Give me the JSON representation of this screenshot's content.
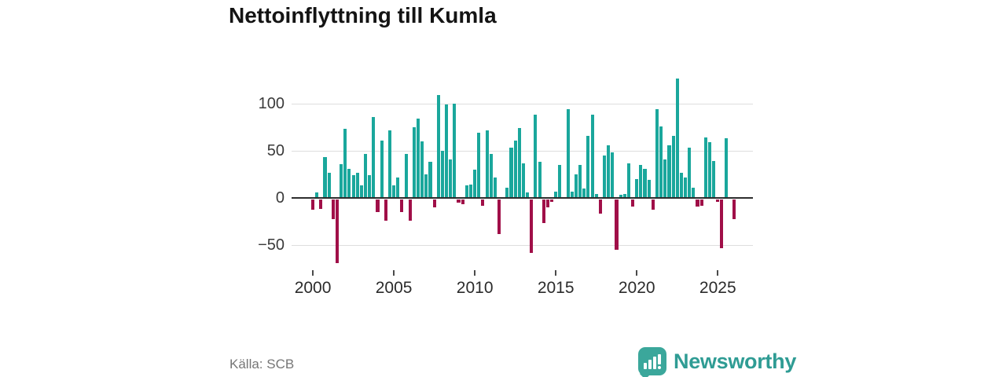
{
  "header": {
    "title": "Nettoinflyttning till Kumla"
  },
  "footer": {
    "source": "Källa: SCB",
    "brand": "Newsworthy"
  },
  "chart_data": {
    "type": "bar",
    "title": "Nettoinflyttning till Kumla",
    "frequency": "quarterly",
    "start": "2000-Q1",
    "end": "2026-Q1",
    "values": [
      -11,
      6,
      -10,
      43,
      27,
      -21,
      -68,
      36,
      73,
      31,
      24,
      27,
      13,
      47,
      24,
      86,
      -14,
      61,
      -23,
      72,
      13,
      22,
      -14,
      47,
      -23,
      75,
      84,
      60,
      25,
      38,
      -9,
      109,
      50,
      99,
      41,
      100,
      -4,
      -5,
      13,
      14,
      30,
      69,
      -7,
      72,
      47,
      22,
      -37,
      0,
      11,
      53,
      61,
      74,
      37,
      6,
      -57,
      88,
      38,
      -25,
      -9,
      -3,
      7,
      35,
      0,
      94,
      7,
      25,
      35,
      10,
      66,
      88,
      4,
      -15,
      45,
      56,
      48,
      -54,
      3,
      4,
      37,
      -8,
      20,
      35,
      31,
      19,
      -11,
      94,
      76,
      41,
      56,
      66,
      127,
      27,
      22,
      53,
      11,
      -8,
      -7,
      64,
      59,
      39,
      -3,
      -52,
      63,
      0,
      -21
    ],
    "y_ticks": [
      100,
      50,
      0,
      -50
    ],
    "x_ticks": [
      2000,
      2005,
      2010,
      2015,
      2020,
      2025
    ],
    "ylim": [
      -75,
      135
    ],
    "grid": true,
    "legend": false,
    "positive_color": "#1AA79C",
    "negative_color": "#A00F48"
  }
}
